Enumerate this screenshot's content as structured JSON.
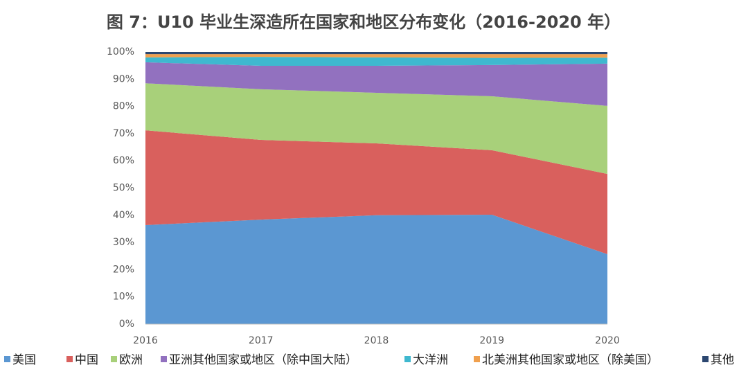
{
  "chart_data": {
    "type": "stacked_area_percent",
    "title": "图 7：U10 毕业生深造所在国家和地区分布变化（2016-2020 年）",
    "categories": [
      "2016",
      "2017",
      "2018",
      "2019",
      "2020"
    ],
    "series": [
      {
        "name": "美国",
        "color": "#5b97d2",
        "values": [
          36.4,
          38.4,
          40.0,
          40.2,
          25.7
        ]
      },
      {
        "name": "中国",
        "color": "#d9605d",
        "values": [
          34.8,
          29.3,
          26.4,
          23.7,
          29.5
        ]
      },
      {
        "name": "欧洲",
        "color": "#a8d07a",
        "values": [
          17.3,
          18.6,
          18.6,
          19.8,
          25.0
        ]
      },
      {
        "name": "亚洲其他国家或地区（除中国大陆）",
        "color": "#9271bf",
        "values": [
          7.7,
          8.6,
          9.9,
          11.5,
          15.5
        ]
      },
      {
        "name": "大洋洲",
        "color": "#3fb8cf",
        "values": [
          1.8,
          3.3,
          3.1,
          2.6,
          2.2
        ]
      },
      {
        "name": "北美洲其他国家或地区（除美国）",
        "color": "#f0a04e",
        "values": [
          1.2,
          1.0,
          1.2,
          1.4,
          1.3
        ]
      },
      {
        "name": "其他",
        "color": "#2c4770",
        "values": [
          0.8,
          0.8,
          0.8,
          0.8,
          0.8
        ]
      }
    ],
    "ylim": [
      0,
      100
    ],
    "yticks": [
      {
        "value": 0,
        "label": "0%"
      },
      {
        "value": 10,
        "label": "10%"
      },
      {
        "value": 20,
        "label": "20%"
      },
      {
        "value": 30,
        "label": "30%"
      },
      {
        "value": 40,
        "label": "40%"
      },
      {
        "value": 50,
        "label": "50%"
      },
      {
        "value": 60,
        "label": "60%"
      },
      {
        "value": 70,
        "label": "70%"
      },
      {
        "value": 80,
        "label": "80%"
      },
      {
        "value": 90,
        "label": "90%"
      },
      {
        "value": 100,
        "label": "100%"
      }
    ],
    "legend": "bottom"
  }
}
